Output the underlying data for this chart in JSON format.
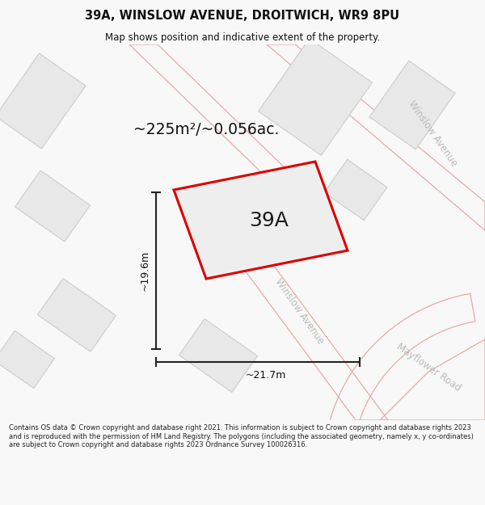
{
  "title": "39A, WINSLOW AVENUE, DROITWICH, WR9 8PU",
  "subtitle": "Map shows position and indicative extent of the property.",
  "area_label": "~225m²/~0.056ac.",
  "property_label": "39A",
  "dim_height": "~19.6m",
  "dim_width": "~21.7m",
  "footer": "Contains OS data © Crown copyright and database right 2021. This information is subject to Crown copyright and database rights 2023 and is reproduced with the permission of HM Land Registry. The polygons (including the associated geometry, namely x, y co-ordinates) are subject to Crown copyright and database rights 2023 Ordnance Survey 100026316.",
  "bg_color": "#f8f8f8",
  "map_bg": "#ffffff",
  "road_fill": "#f9d0d0",
  "road_edge": "#e8a0a0",
  "building_fill": "#e8e8e8",
  "building_edge": "#c8c8c8",
  "property_fill": "#eeeeee",
  "property_stroke": "#dd0000",
  "dim_color": "#222222",
  "street_label_color": "#bbbbbb",
  "title_color": "#111111",
  "footer_color": "#222222"
}
